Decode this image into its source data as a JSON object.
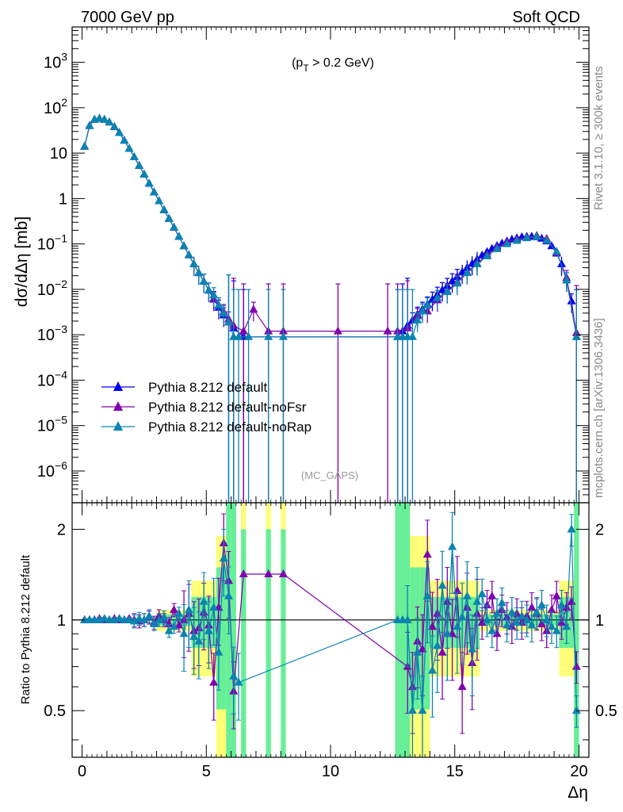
{
  "header": {
    "energy_label": "7000 GeV pp",
    "process_label": "Soft QCD"
  },
  "side_labels": {
    "rivet": "Rivet 3.1.10, ≥ 300k events",
    "source": "mcplots.cern.ch [arXiv:1306.3436]"
  },
  "chart_data": [
    {
      "type": "scatter",
      "panel": "main",
      "ylabel": "dσ/dΔη [mb]",
      "annotation": "(p_T > 0.2 GeV)",
      "analysis_tag": "(MC_GAPS)",
      "x_scale": "linear",
      "y_scale": "log",
      "xlim": [
        -0.4,
        20.4
      ],
      "ylim": [
        2e-07,
        6000
      ],
      "x_ticks": [
        "0",
        "5",
        "10",
        "15",
        "20"
      ],
      "y_ticks": [
        "10^-6",
        "10^-5",
        "10^-4",
        "10^-3",
        "10^-2",
        "10^-1",
        "1",
        "10",
        "10^2",
        "10^3"
      ],
      "legend_placement": "lower-left",
      "grid": false,
      "series": [
        {
          "name": "Pythia 8.212 default",
          "color": "#0000ee",
          "marker": "triangle",
          "x": [
            0.1,
            0.3,
            0.5,
            0.7,
            0.9,
            1.1,
            1.3,
            1.5,
            1.7,
            1.9,
            2.1,
            2.3,
            2.5,
            2.7,
            2.9,
            3.1,
            3.3,
            3.5,
            3.7,
            3.9,
            4.1,
            4.3,
            4.5,
            4.7,
            4.9,
            5.1,
            5.3,
            5.5,
            5.7,
            5.9,
            6.1,
            6.5,
            12.7,
            12.9,
            13.1,
            13.3,
            13.5,
            13.7,
            13.9,
            14.1,
            14.3,
            14.5,
            14.7,
            14.9,
            15.1,
            15.3,
            15.5,
            15.7,
            15.9,
            16.1,
            16.3,
            16.5,
            16.7,
            16.9,
            17.1,
            17.3,
            17.5,
            17.7,
            17.9,
            18.1,
            18.3,
            18.5,
            18.7,
            18.9,
            19.1,
            19.3,
            19.5,
            19.7,
            19.9
          ],
          "y": [
            14,
            40,
            55,
            58,
            55,
            48,
            38,
            28,
            19,
            12.5,
            8.2,
            5.3,
            3.4,
            2.15,
            1.38,
            0.88,
            0.56,
            0.36,
            0.23,
            0.145,
            0.09,
            0.057,
            0.036,
            0.023,
            0.015,
            0.0095,
            0.0062,
            0.004,
            0.0027,
            0.0019,
            0.0014,
            0.0009,
            0.0009,
            0.0012,
            0.0016,
            0.0021,
            0.0028,
            0.0036,
            0.0047,
            0.006,
            0.0077,
            0.0097,
            0.012,
            0.0152,
            0.019,
            0.024,
            0.03,
            0.037,
            0.046,
            0.056,
            0.067,
            0.079,
            0.091,
            0.103,
            0.115,
            0.126,
            0.135,
            0.142,
            0.146,
            0.146,
            0.142,
            0.132,
            0.115,
            0.09,
            0.062,
            0.036,
            0.016,
            0.0055,
            0.0009
          ]
        },
        {
          "name": "Pythia 8.212 default-noFsr",
          "color": "#8000b0",
          "marker": "triangle",
          "x": [
            0.1,
            0.3,
            0.5,
            0.7,
            0.9,
            1.1,
            1.3,
            1.5,
            1.7,
            1.9,
            2.1,
            2.3,
            2.5,
            2.7,
            2.9,
            3.1,
            3.3,
            3.5,
            3.7,
            3.9,
            4.1,
            4.3,
            4.5,
            4.7,
            4.9,
            5.1,
            5.3,
            5.5,
            5.7,
            5.9,
            6.1,
            6.5,
            6.9,
            7.5,
            8.1,
            10.3,
            12.3,
            12.7,
            13.1,
            13.5,
            13.9,
            14.3,
            14.7,
            15.1,
            15.5,
            15.9,
            16.3,
            16.7,
            17.1,
            17.5,
            17.9,
            18.3,
            18.7,
            19.1,
            19.5,
            19.9
          ],
          "y": [
            14,
            40,
            55,
            58,
            55,
            48,
            38,
            28,
            19,
            12.5,
            8.2,
            5.3,
            3.4,
            2.15,
            1.38,
            0.88,
            0.56,
            0.36,
            0.23,
            0.145,
            0.09,
            0.057,
            0.036,
            0.023,
            0.015,
            0.0095,
            0.006,
            0.0045,
            0.0032,
            0.0022,
            0.0016,
            0.0012,
            0.0036,
            0.0012,
            0.0012,
            0.0012,
            0.0012,
            0.0012,
            0.0014,
            0.0026,
            0.0033,
            0.0058,
            0.0092,
            0.0145,
            0.024,
            0.037,
            0.058,
            0.084,
            0.11,
            0.128,
            0.14,
            0.152,
            0.13,
            0.064,
            0.018,
            0.0011
          ]
        },
        {
          "name": "Pythia 8.212 default-noRap",
          "color": "#0a84b0",
          "marker": "triangle",
          "x": [
            0.1,
            0.3,
            0.5,
            0.7,
            0.9,
            1.1,
            1.3,
            1.5,
            1.7,
            1.9,
            2.1,
            2.3,
            2.5,
            2.7,
            2.9,
            3.1,
            3.3,
            3.5,
            3.7,
            3.9,
            4.1,
            4.3,
            4.5,
            4.7,
            4.9,
            5.1,
            5.3,
            5.5,
            5.7,
            5.9,
            6.1,
            6.3,
            6.7,
            7.5,
            8.1,
            12.7,
            12.9,
            13.1,
            13.3,
            13.5,
            13.7,
            13.9,
            14.3,
            14.7,
            15.1,
            15.5,
            15.9,
            16.3,
            16.7,
            17.1,
            17.5,
            17.9,
            18.3,
            18.7,
            19.1,
            19.5,
            19.9
          ],
          "y": [
            14,
            40,
            55,
            58,
            55,
            48,
            38,
            28,
            19,
            12.5,
            8.2,
            5.3,
            3.4,
            2.15,
            1.38,
            0.88,
            0.56,
            0.36,
            0.23,
            0.145,
            0.09,
            0.057,
            0.036,
            0.023,
            0.015,
            0.0095,
            0.0075,
            0.0045,
            0.003,
            0.0019,
            0.0009,
            0.0009,
            0.0009,
            0.0009,
            0.0009,
            0.0009,
            0.0009,
            0.0009,
            0.0009,
            0.0021,
            0.0033,
            0.0045,
            0.0065,
            0.0088,
            0.0135,
            0.023,
            0.036,
            0.054,
            0.078,
            0.1,
            0.118,
            0.135,
            0.145,
            0.12,
            0.068,
            0.016,
            0.0009
          ]
        }
      ]
    },
    {
      "type": "scatter",
      "panel": "ratio",
      "ylabel": "Ratio to Pythia 8.212 default",
      "xlabel": "Δη",
      "x_scale": "linear",
      "y_scale": "log",
      "xlim": [
        -0.4,
        20.4
      ],
      "ylim": [
        0.35,
        2.45
      ],
      "x_ticks": [
        "0",
        "5",
        "10",
        "15",
        "20"
      ],
      "y_ticks": [
        "0.5",
        "1",
        "2"
      ],
      "reference_line": 1,
      "bands": {
        "inner_color": "#66ee99",
        "outer_color": "#ffff77",
        "note": "statistical uncertainty bands of the reference"
      },
      "series": [
        {
          "name": "Pythia 8.212 default-noFsr",
          "color": "#8000b0",
          "x": [
            0.1,
            0.3,
            0.5,
            0.7,
            0.9,
            1.1,
            1.3,
            1.5,
            1.7,
            1.9,
            2.1,
            2.3,
            2.5,
            2.7,
            2.9,
            3.1,
            3.3,
            3.5,
            3.7,
            3.9,
            4.1,
            4.3,
            4.5,
            4.7,
            4.9,
            5.1,
            5.3,
            5.5,
            5.7,
            5.9,
            6.1,
            6.5,
            7.5,
            8.1,
            13.1,
            13.3,
            13.5,
            13.7,
            13.9,
            14.1,
            14.3,
            14.5,
            14.7,
            14.9,
            15.1,
            15.3,
            15.5,
            15.7,
            15.9,
            16.1,
            16.3,
            16.5,
            16.7,
            16.9,
            17.1,
            17.3,
            17.5,
            17.7,
            17.9,
            18.1,
            18.3,
            18.5,
            18.7,
            18.9,
            19.1,
            19.3,
            19.5,
            19.7,
            19.9
          ],
          "y": [
            1,
            1,
            1,
            1.01,
            1,
            1,
            1.01,
            1,
            1,
            1.01,
            1,
            0.99,
            1,
            1.02,
            0.98,
            1.03,
            1,
            0.97,
            1.08,
            0.96,
            1,
            1.05,
            0.92,
            0.94,
            1.06,
            0.96,
            0.62,
            1.1,
            1.8,
            1.35,
            0.58,
            1.42,
            1.42,
            1.42,
            0.7,
            0.6,
            0.85,
            0.8,
            1.65,
            0.95,
            1.05,
            0.78,
            1.15,
            0.9,
            1.25,
            0.6,
            1.1,
            0.72,
            1.05,
            0.98,
            1.12,
            1.2,
            0.9,
            1.08,
            1.02,
            0.95,
            1.05,
            0.98,
            1.03,
            1.1,
            1.05,
            0.97,
            0.92,
            1.08,
            1.2,
            0.98,
            1.1,
            1.15,
            0.7
          ]
        },
        {
          "name": "Pythia 8.212 default-noRap",
          "color": "#0a84b0",
          "x": [
            0.1,
            0.3,
            0.5,
            0.7,
            0.9,
            1.1,
            1.3,
            1.5,
            1.7,
            1.9,
            2.1,
            2.3,
            2.5,
            2.7,
            2.9,
            3.1,
            3.3,
            3.5,
            3.7,
            3.9,
            4.1,
            4.3,
            4.5,
            4.7,
            4.9,
            5.1,
            5.3,
            5.5,
            5.7,
            5.9,
            6.1,
            6.3,
            12.7,
            12.9,
            13.1,
            13.3,
            13.5,
            13.7,
            13.9,
            14.1,
            14.3,
            14.5,
            14.7,
            14.9,
            15.1,
            15.3,
            15.5,
            15.7,
            15.9,
            16.1,
            16.3,
            16.5,
            16.7,
            16.9,
            17.1,
            17.3,
            17.5,
            17.7,
            17.9,
            18.1,
            18.3,
            18.5,
            18.7,
            18.9,
            19.1,
            19.3,
            19.5,
            19.7,
            19.9
          ],
          "y": [
            1,
            1,
            1,
            1,
            1.01,
            1,
            1,
            1.01,
            1,
            1,
            0.99,
            1.01,
            1,
            1.03,
            0.97,
            1,
            1.02,
            0.92,
            0.95,
            1.05,
            0.9,
            1.08,
            0.88,
            0.85,
            1.15,
            0.92,
            1.1,
            0.78,
            1.6,
            1.2,
            0.65,
            0.62,
            1,
            1,
            1,
            0.5,
            0.78,
            0.5,
            1.2,
            0.68,
            0.82,
            1.3,
            0.9,
            1.75,
            0.95,
            1.02,
            1.2,
            0.8,
            1.15,
            1.22,
            1,
            0.92,
            1.05,
            1.14,
            0.96,
            1.06,
            0.98,
            1.03,
            1,
            0.96,
            1.06,
            1.12,
            1,
            0.95,
            0.92,
            1.12,
            0.95,
            2,
            0.5
          ]
        }
      ]
    }
  ]
}
